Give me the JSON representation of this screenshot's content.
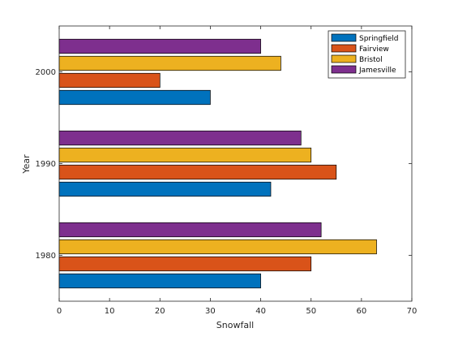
{
  "chart_data": {
    "type": "bar",
    "orientation": "horizontal",
    "title": "",
    "xlabel": "Snowfall",
    "ylabel": "Year",
    "categories": [
      "1980",
      "1990",
      "2000"
    ],
    "series": [
      {
        "name": "Springfield",
        "color": "#0072BD",
        "values": [
          40,
          42,
          30
        ]
      },
      {
        "name": "Fairview",
        "color": "#D95319",
        "values": [
          50,
          55,
          20
        ]
      },
      {
        "name": "Bristol",
        "color": "#EDB120",
        "values": [
          63,
          50,
          44
        ]
      },
      {
        "name": "Jamesville",
        "color": "#7E2F8E",
        "values": [
          52,
          48,
          40
        ]
      }
    ],
    "xlim": [
      0,
      70
    ],
    "xticks": [
      0,
      10,
      20,
      30,
      40,
      50,
      60,
      70
    ],
    "grid": false,
    "legend_position": "top-right"
  }
}
